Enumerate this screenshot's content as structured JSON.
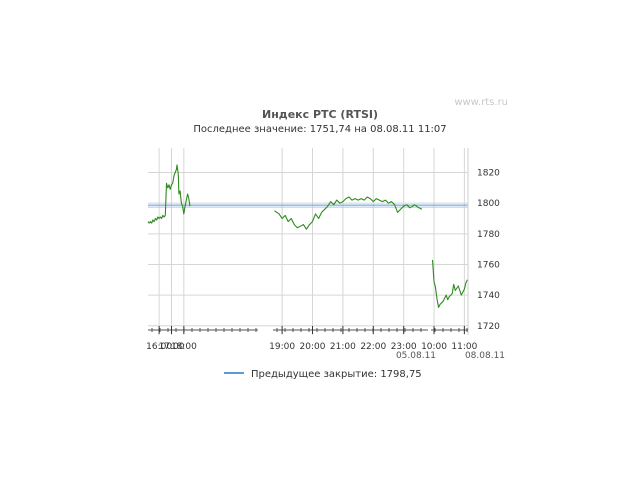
{
  "watermark": "www.rts.ru",
  "chart_data": {
    "type": "line",
    "title": "Индекс РТС (RTSI)",
    "subtitle": "Последнее значение: 1751,74 на 08.08.11 11:07",
    "ylim": [
      1714,
      1836
    ],
    "yticks": [
      1720,
      1740,
      1760,
      1780,
      1800,
      1820
    ],
    "y_axis_position": "right",
    "grid": true,
    "x_segments": [
      {
        "date": "05.08.11",
        "x_range": [
          15.1,
          24.0
        ],
        "ticks": [
          "16:00",
          "17:00",
          "18:00"
        ],
        "tick_values": [
          16,
          17,
          18
        ],
        "grid_values": [
          16,
          17,
          18
        ]
      },
      {
        "date": "05.08.11",
        "x_range": [
          18.7,
          23.8
        ],
        "ticks": [
          "19:00",
          "20:00",
          "21:00",
          "22:00",
          "23:00"
        ],
        "tick_values": [
          19,
          20,
          21,
          22,
          23
        ],
        "grid_values": [
          19,
          20,
          21,
          22,
          23
        ]
      },
      {
        "date": "08.08.11",
        "x_range": [
          9.9,
          11.12
        ],
        "ticks": [
          "10:00",
          "11:00"
        ],
        "tick_values": [
          10,
          11
        ],
        "grid_values": [
          10,
          11
        ]
      }
    ],
    "date_labels": [
      "05.08.11",
      "08.08.11"
    ],
    "reference_line": {
      "name": "Предыдущее закрытие",
      "value": 1798.75,
      "color": "#5b9bd5"
    },
    "legend": {
      "label": "Предыдущее закрытие: 1798,75",
      "position": "bottom"
    },
    "series": [
      {
        "color": "#2e8b1e",
        "points": [
          [
            15.1,
            1788
          ],
          [
            15.2,
            1787
          ],
          [
            15.3,
            1788
          ],
          [
            15.4,
            1787
          ],
          [
            15.5,
            1789
          ],
          [
            15.6,
            1788
          ],
          [
            15.7,
            1790
          ],
          [
            15.8,
            1789
          ],
          [
            15.9,
            1791
          ],
          [
            16.0,
            1790
          ],
          [
            16.1,
            1791
          ],
          [
            16.2,
            1790
          ],
          [
            16.3,
            1792
          ],
          [
            16.4,
            1791
          ],
          [
            16.5,
            1792
          ],
          [
            16.6,
            1813
          ],
          [
            16.7,
            1810
          ],
          [
            16.8,
            1812
          ],
          [
            16.9,
            1809
          ],
          [
            17.0,
            1812
          ],
          [
            17.1,
            1813
          ],
          [
            17.2,
            1818
          ],
          [
            17.3,
            1820
          ],
          [
            17.4,
            1822
          ],
          [
            17.45,
            1825
          ],
          [
            17.55,
            1819
          ],
          [
            17.6,
            1806
          ],
          [
            17.7,
            1808
          ],
          [
            17.8,
            1800
          ],
          [
            17.9,
            1798
          ],
          [
            18.0,
            1793
          ],
          [
            18.1,
            1798
          ],
          [
            18.2,
            1802
          ],
          [
            18.3,
            1806
          ],
          [
            18.4,
            1803
          ],
          [
            18.5,
            1798
          ]
        ]
      },
      {
        "color": "#2e8b1e",
        "points": [
          [
            18.75,
            1795
          ],
          [
            18.9,
            1793
          ],
          [
            19.0,
            1790
          ],
          [
            19.1,
            1792
          ],
          [
            19.2,
            1788
          ],
          [
            19.3,
            1790
          ],
          [
            19.4,
            1786
          ],
          [
            19.5,
            1784
          ],
          [
            19.6,
            1785
          ],
          [
            19.7,
            1786
          ],
          [
            19.8,
            1783
          ],
          [
            19.9,
            1786
          ],
          [
            20.0,
            1788
          ],
          [
            20.1,
            1793
          ],
          [
            20.2,
            1790
          ],
          [
            20.3,
            1794
          ],
          [
            20.4,
            1796
          ],
          [
            20.5,
            1798
          ],
          [
            20.6,
            1801
          ],
          [
            20.7,
            1799
          ],
          [
            20.8,
            1802
          ],
          [
            20.9,
            1800
          ],
          [
            21.0,
            1801
          ],
          [
            21.1,
            1803
          ],
          [
            21.2,
            1804
          ],
          [
            21.3,
            1802
          ],
          [
            21.4,
            1803
          ],
          [
            21.5,
            1802
          ],
          [
            21.6,
            1803
          ],
          [
            21.7,
            1802
          ],
          [
            21.8,
            1804
          ],
          [
            21.9,
            1803
          ],
          [
            22.0,
            1801
          ],
          [
            22.1,
            1803
          ],
          [
            22.2,
            1802
          ],
          [
            22.3,
            1801
          ],
          [
            22.4,
            1802
          ],
          [
            22.5,
            1800
          ],
          [
            22.6,
            1801
          ],
          [
            22.7,
            1799
          ],
          [
            22.8,
            1794
          ],
          [
            22.9,
            1796
          ],
          [
            23.0,
            1798
          ],
          [
            23.1,
            1799
          ],
          [
            23.2,
            1797
          ],
          [
            23.3,
            1798
          ],
          [
            23.35,
            1799
          ],
          [
            23.5,
            1797
          ],
          [
            23.6,
            1796
          ]
        ]
      },
      {
        "color": "#2e8b1e",
        "points": [
          [
            9.95,
            1763
          ],
          [
            10.0,
            1749
          ],
          [
            10.05,
            1745
          ],
          [
            10.1,
            1737
          ],
          [
            10.15,
            1732
          ],
          [
            10.2,
            1734
          ],
          [
            10.3,
            1736
          ],
          [
            10.4,
            1740
          ],
          [
            10.45,
            1737
          ],
          [
            10.5,
            1739
          ],
          [
            10.6,
            1741
          ],
          [
            10.65,
            1747
          ],
          [
            10.7,
            1743
          ],
          [
            10.8,
            1746
          ],
          [
            10.9,
            1740
          ],
          [
            11.0,
            1744
          ],
          [
            11.05,
            1748
          ],
          [
            11.1,
            1750
          ]
        ]
      }
    ]
  }
}
